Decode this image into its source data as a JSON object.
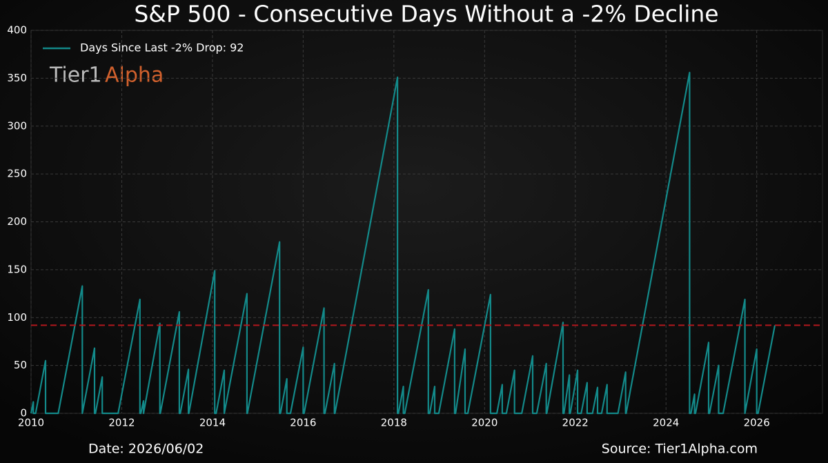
{
  "chart_data": {
    "type": "line",
    "title": "S&P 500 - Consecutive Days Without a -2% Decline",
    "x": [
      2010.0,
      2010.05,
      2010.05,
      2010.1,
      2010.32,
      2010.32,
      2010.6,
      2011.13,
      2011.13,
      2011.13,
      2011.4,
      2011.4,
      2011.42,
      2011.57,
      2011.57,
      2011.92,
      2012.4,
      2012.4,
      2012.42,
      2012.48,
      2012.48,
      2012.48,
      2012.84,
      2012.84,
      2012.85,
      2013.27,
      2013.27,
      2013.29,
      2013.47,
      2013.47,
      2013.48,
      2014.05,
      2014.05,
      2014.08,
      2014.26,
      2014.26,
      2014.26,
      2014.76,
      2014.76,
      2014.77,
      2015.48,
      2015.48,
      2015.5,
      2015.64,
      2015.64,
      2015.72,
      2016.0,
      2016.0,
      2016.02,
      2016.46,
      2016.46,
      2016.48,
      2016.69,
      2016.69,
      2016.7,
      2018.08,
      2018.08,
      2018.1,
      2018.21,
      2018.21,
      2018.24,
      2018.76,
      2018.76,
      2018.79,
      2018.9,
      2018.9,
      2018.99,
      2019.34,
      2019.34,
      2019.36,
      2019.57,
      2019.57,
      2019.63,
      2020.13,
      2020.13,
      2020.27,
      2020.39,
      2020.39,
      2020.48,
      2020.66,
      2020.66,
      2020.82,
      2021.06,
      2021.06,
      2021.15,
      2021.36,
      2021.36,
      2021.37,
      2021.73,
      2021.73,
      2021.75,
      2021.87,
      2021.87,
      2021.89,
      2022.05,
      2022.05,
      2022.13,
      2022.26,
      2022.26,
      2022.38,
      2022.49,
      2022.49,
      2022.58,
      2022.7,
      2022.7,
      2022.94,
      2023.11,
      2023.11,
      2023.12,
      2024.52,
      2024.52,
      2024.55,
      2024.63,
      2024.63,
      2024.65,
      2024.94,
      2024.94,
      2024.96,
      2025.16,
      2025.16,
      2025.26,
      2025.74,
      2025.74,
      2025.74,
      2026.0,
      2026.0,
      2026.03,
      2026.4
    ],
    "series": [
      {
        "name": "Days Since Last -2% Drop: 92",
        "color": "#138a8a",
        "values": [
          0,
          12,
          0,
          0,
          55,
          0,
          0,
          133,
          0,
          0,
          68,
          0,
          0,
          38,
          0,
          0,
          119,
          0,
          0,
          13,
          0,
          0,
          94,
          0,
          0,
          106,
          0,
          0,
          46,
          0,
          0,
          149,
          0,
          0,
          45,
          0,
          0,
          125,
          0,
          0,
          179,
          0,
          0,
          36,
          0,
          0,
          69,
          0,
          0,
          110,
          0,
          0,
          52,
          0,
          0,
          351,
          0,
          0,
          28,
          0,
          0,
          129,
          0,
          0,
          28,
          0,
          0,
          88,
          0,
          0,
          67,
          0,
          0,
          124,
          0,
          0,
          30,
          0,
          0,
          45,
          0,
          0,
          60,
          0,
          0,
          52,
          0,
          0,
          95,
          0,
          0,
          40,
          0,
          0,
          45,
          0,
          0,
          32,
          0,
          0,
          27,
          0,
          0,
          30,
          0,
          0,
          43,
          0,
          0,
          356,
          0,
          0,
          20,
          0,
          0,
          74,
          0,
          0,
          50,
          0,
          0,
          119,
          0,
          0,
          67,
          0,
          0,
          92
        ]
      }
    ],
    "hline": {
      "value": 92,
      "color": "#b3171d"
    },
    "xlim": [
      2010,
      2027.45
    ],
    "xticks": [
      2010,
      2012,
      2014,
      2016,
      2018,
      2020,
      2022,
      2024,
      2026
    ],
    "ylim": [
      0,
      400
    ],
    "yticks": [
      0,
      50,
      100,
      150,
      200,
      250,
      300,
      350,
      400
    ],
    "grid": true,
    "legend": "upper left",
    "watermark": [
      "Tier1",
      "Alpha"
    ],
    "date_label": "Date: 2026/06/02",
    "source": "Source: Tier1Alpha.com"
  }
}
